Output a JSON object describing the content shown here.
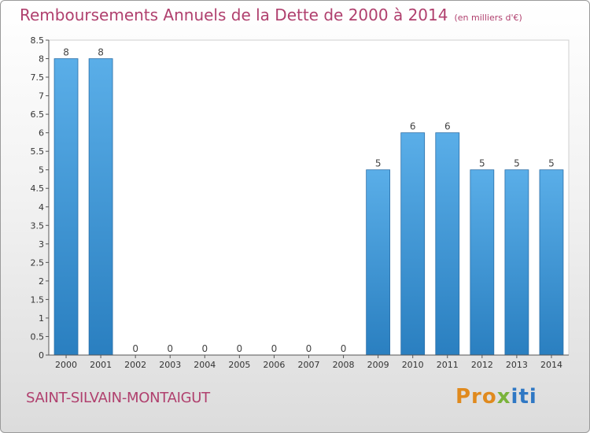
{
  "header": {
    "title": "Remboursements Annuels de la Dette de 2000 à 2014",
    "unit": "(en milliers d'€)"
  },
  "footer": {
    "commune": "SAINT-SILVAIN-MONTAIGUT",
    "logo_text": "Proxiti"
  },
  "colors": {
    "bar_top": "#5aaee8",
    "bar_bottom": "#2a7fc0",
    "title": "#b0406e"
  },
  "chart_data": {
    "type": "bar",
    "title": "Remboursements Annuels de la Dette de 2000 à 2014",
    "categories": [
      "2000",
      "2001",
      "2002",
      "2003",
      "2004",
      "2005",
      "2006",
      "2007",
      "2008",
      "2009",
      "2010",
      "2011",
      "2012",
      "2013",
      "2014"
    ],
    "values": [
      8,
      8,
      0,
      0,
      0,
      0,
      0,
      0,
      0,
      5,
      6,
      6,
      5,
      5,
      5
    ],
    "data_labels": [
      "8",
      "8",
      "0",
      "0",
      "0",
      "0",
      "0",
      "0",
      "0",
      "5",
      "6",
      "6",
      "5",
      "5",
      "5"
    ],
    "ylim": [
      0,
      8.5
    ],
    "yticks": [
      "0",
      "0.5",
      "1",
      "1.5",
      "2",
      "2.5",
      "3",
      "3.5",
      "4",
      "4.5",
      "5",
      "5.5",
      "6",
      "6.5",
      "7",
      "7.5",
      "8",
      "8.5"
    ],
    "grid": false
  }
}
